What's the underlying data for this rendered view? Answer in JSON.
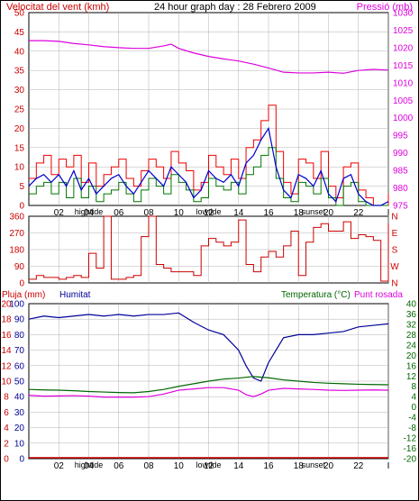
{
  "header": {
    "wind_title": "Velocitat del vent (kmh)",
    "graph_title": "24 hour graph day : 28 Febrero 2009",
    "pressure_title": "Pressió (mb)"
  },
  "x_axis": {
    "ticks": [
      "02",
      "04",
      "06",
      "08",
      "10",
      "12",
      "14",
      "16",
      "18",
      "20",
      "22",
      "I"
    ],
    "tick_hours": [
      2,
      4,
      6,
      8,
      10,
      12,
      14,
      16,
      18,
      20,
      22,
      24
    ],
    "events": [
      {
        "label": "hightide",
        "hour": 4
      },
      {
        "label": "lowtide",
        "hour": 12
      },
      {
        "label": "sunset",
        "hour": 19
      }
    ]
  },
  "lower_header": {
    "rain_title": "Pluja (mm)",
    "humidity_title": "Humitat",
    "temperature_title": "Temperatura (°C)",
    "dewpoint_title": "Punt rosada"
  },
  "colors": {
    "wind_axis": "#cc0000",
    "pressure": "#dd00dd",
    "gust": "#ee0000",
    "wind_avg": "#007700",
    "wind_blue": "#0000cc",
    "direction": "#cc0000",
    "humidity": "#000099",
    "temperature": "#006600",
    "dewpoint": "#dd00dd",
    "rain": "#cc0000",
    "grid": "#b0b0b0"
  },
  "chart_data": [
    {
      "type": "line",
      "title": "",
      "x_unit": "hour",
      "xlim": [
        0,
        24
      ],
      "ylabel_left": "Velocitat del vent (kmh)",
      "ylabel_right": "Pressió (mb)",
      "ylim_left": [
        0,
        50
      ],
      "ylim_right": [
        975,
        1030
      ],
      "yticks_left": [
        "0",
        "5",
        "10",
        "15",
        "20",
        "25",
        "30",
        "35",
        "40",
        "45",
        "50"
      ],
      "yticks_right": [
        "975",
        "980",
        "985",
        "990",
        "995",
        "1000",
        "1005",
        "1010",
        "1015",
        "1020",
        "1025",
        "1030"
      ],
      "grid": true,
      "series": [
        {
          "name": "Pressió (mb)",
          "axis": "right",
          "x": [
            0,
            1,
            2,
            3,
            4,
            5,
            6,
            7,
            8,
            9,
            9.5,
            10,
            11,
            12,
            13,
            14,
            15,
            16,
            17,
            18,
            19,
            20,
            21,
            22,
            23,
            24
          ],
          "y": [
            1022,
            1022,
            1021.8,
            1021.2,
            1020.8,
            1020.3,
            1020,
            1019.8,
            1019.8,
            1020.5,
            1021,
            1019.8,
            1018.5,
            1017.5,
            1016.8,
            1016.2,
            1015.3,
            1014.2,
            1013,
            1012.8,
            1012.8,
            1013,
            1012.7,
            1013.5,
            1013.8,
            1013.6
          ]
        },
        {
          "axis": "left",
          "x": [
            0,
            0.5,
            1,
            1.5,
            2,
            2.5,
            3,
            3.5,
            4,
            4.5,
            5,
            5.5,
            6,
            6.5,
            7,
            7.5,
            8,
            8.5,
            9,
            9.5,
            10,
            10.5,
            11,
            11.5,
            12,
            12.5,
            13,
            13.5,
            14,
            14.5,
            15,
            15.5,
            16,
            16.5,
            17,
            17.5,
            18,
            18.5,
            19,
            19.5,
            20,
            20.5,
            21,
            21.5,
            22,
            22.5,
            23,
            23.5,
            24
          ],
          "y": [
            7,
            11,
            13,
            8,
            12,
            10,
            13,
            6,
            11,
            5,
            8,
            10,
            12,
            7,
            5,
            9,
            12,
            10,
            7,
            14,
            11,
            9,
            4,
            6,
            13,
            10,
            8,
            12,
            7,
            15,
            17,
            22,
            26,
            14,
            6,
            3,
            12,
            11,
            7,
            14,
            5,
            2,
            10,
            11,
            4,
            2,
            0,
            0,
            3
          ]
        },
        {
          "axis": "left",
          "x": [
            0,
            0.5,
            1,
            1.5,
            2,
            2.5,
            3,
            3.5,
            4,
            4.5,
            5,
            5.5,
            6,
            6.5,
            7,
            7.5,
            8,
            8.5,
            9,
            9.5,
            10,
            10.5,
            11,
            11.5,
            12,
            12.5,
            13,
            13.5,
            14,
            14.5,
            15,
            15.5,
            16,
            16.5,
            17,
            17.5,
            18,
            18.5,
            19,
            19.5,
            20,
            20.5,
            21,
            21.5,
            22,
            22.5,
            23,
            23.5,
            24
          ],
          "y": [
            5,
            7,
            8,
            6,
            8,
            5,
            9,
            4,
            7,
            3,
            5,
            7,
            8,
            5,
            3,
            6,
            9,
            7,
            5,
            10,
            8,
            6,
            2,
            4,
            9,
            7,
            6,
            8,
            5,
            11,
            13,
            17,
            20,
            10,
            4,
            2,
            8,
            7,
            5,
            9,
            3,
            1,
            7,
            8,
            3,
            1,
            0,
            0,
            1
          ]
        },
        {
          "axis": "left",
          "x": [
            0,
            0.5,
            1,
            1.5,
            2,
            2.5,
            3,
            3.5,
            4,
            4.5,
            5,
            5.5,
            6,
            6.5,
            7,
            7.5,
            8,
            8.5,
            9,
            9.5,
            10,
            10.5,
            11,
            11.5,
            12,
            12.5,
            13,
            13.5,
            14,
            14.5,
            15,
            15.5,
            16,
            16.5,
            17,
            17.5,
            18,
            18.5,
            19,
            19.5,
            20,
            20.5,
            21,
            21.5,
            22,
            22.5,
            23,
            23.5,
            24
          ],
          "y": [
            3,
            5,
            6,
            3,
            6,
            2,
            7,
            2,
            5,
            1,
            3,
            4,
            6,
            3,
            1,
            4,
            7,
            5,
            3,
            8,
            6,
            4,
            1,
            2,
            7,
            5,
            4,
            6,
            3,
            8,
            10,
            13,
            15,
            7,
            2,
            1,
            6,
            5,
            3,
            7,
            2,
            0,
            5,
            6,
            1,
            0,
            0,
            0,
            0
          ]
        }
      ]
    },
    {
      "type": "line",
      "title": "",
      "x_unit": "hour",
      "xlim": [
        0,
        24
      ],
      "ylim": [
        0,
        360
      ],
      "yticks": [
        "0",
        "90",
        "180",
        "270",
        "360"
      ],
      "compass_labels": [
        "N",
        "W",
        "S",
        "E",
        "N"
      ],
      "grid": true,
      "series": [
        {
          "axis": "left",
          "x": [
            0,
            0.5,
            1,
            1.5,
            2,
            2.5,
            3,
            3.5,
            4,
            4.5,
            5,
            5.5,
            6,
            6.5,
            7,
            7.5,
            8,
            8.5,
            9,
            9.5,
            10,
            10.5,
            11,
            11.5,
            12,
            12.5,
            13,
            13.5,
            14,
            14.5,
            15,
            15.5,
            16,
            16.5,
            17,
            17.5,
            18,
            18.5,
            19,
            19.5,
            20,
            20.5,
            21,
            21.5,
            22,
            22.5,
            23,
            23.5,
            24
          ],
          "y": [
            20,
            40,
            30,
            30,
            20,
            30,
            40,
            30,
            160,
            80,
            370,
            20,
            20,
            30,
            40,
            250,
            360,
            100,
            80,
            60,
            60,
            60,
            40,
            200,
            240,
            220,
            200,
            220,
            340,
            100,
            60,
            140,
            170,
            140,
            200,
            280,
            40,
            220,
            300,
            320,
            280,
            280,
            330,
            240,
            260,
            250,
            230,
            10,
            320
          ]
        }
      ]
    },
    {
      "type": "line",
      "title": "",
      "x_unit": "hour",
      "xlim": [
        0,
        24
      ],
      "ylabel_left": "Pluja (mm)",
      "ylabel_left2": "Humitat",
      "ylabel_right": "Temperatura (°C)",
      "ylabel_right2": "Punt rosada",
      "ylim_left": [
        0,
        100
      ],
      "ylim_right": [
        -20,
        40
      ],
      "yticks_left_rain": [
        "0",
        "2",
        "4",
        "6",
        "8",
        "10",
        "12",
        "14",
        "16",
        "18",
        "20"
      ],
      "yticks_left_humidity": [
        "0",
        "10",
        "20",
        "30",
        "40",
        "50",
        "60",
        "70",
        "80",
        "90",
        "100"
      ],
      "yticks_right": [
        "-20",
        "-16",
        "-12",
        "-8",
        "-4",
        "0",
        "4",
        "8",
        "12",
        "16",
        "20",
        "24",
        "28",
        "32",
        "36",
        "40"
      ],
      "grid": true,
      "series": [
        {
          "name": "Humitat",
          "axis": "left",
          "x": [
            0,
            1,
            2,
            3,
            4,
            5,
            6,
            7,
            8,
            9,
            10,
            11,
            12,
            13,
            14,
            14.5,
            15,
            15.5,
            16,
            17,
            18,
            19,
            20,
            21,
            22,
            23,
            24
          ],
          "y": [
            90,
            92,
            91,
            92,
            93,
            92,
            93,
            92,
            93,
            93,
            94,
            88,
            83,
            80,
            70,
            60,
            52,
            50,
            62,
            78,
            80,
            80,
            81,
            82,
            85,
            86,
            87
          ]
        },
        {
          "name": "Temperatura (°C)",
          "axis": "right",
          "x": [
            0,
            1,
            2,
            3,
            4,
            5,
            6,
            7,
            8,
            9,
            10,
            11,
            12,
            13,
            14,
            15,
            16,
            17,
            18,
            19,
            20,
            21,
            22,
            23,
            24
          ],
          "y": [
            6.8,
            6.6,
            6.5,
            6.3,
            6,
            5.8,
            5.6,
            5.5,
            6,
            6.8,
            8,
            9,
            10,
            10.8,
            11.2,
            11.8,
            11.3,
            10.5,
            10,
            9.5,
            9.2,
            9,
            8.8,
            8.7,
            8.6
          ]
        },
        {
          "name": "Punt rosada",
          "axis": "right",
          "x": [
            0,
            1,
            2,
            3,
            4,
            5,
            6,
            7,
            8,
            9,
            10,
            11,
            12,
            13,
            14,
            14.5,
            15,
            15.5,
            16,
            17,
            18,
            19,
            20,
            21,
            22,
            23,
            24
          ],
          "y": [
            4.5,
            4.2,
            4.3,
            4.4,
            4.2,
            3.8,
            3.8,
            3.8,
            4,
            5,
            6.5,
            7,
            7.5,
            7.5,
            6.5,
            4.8,
            4,
            5,
            6.5,
            7.2,
            7,
            6.8,
            6.5,
            6.4,
            6.5,
            6.6,
            6.5
          ]
        },
        {
          "name": "Pluja (mm)",
          "axis": "left",
          "x": [
            0,
            24
          ],
          "y": [
            0,
            0
          ]
        }
      ]
    }
  ]
}
